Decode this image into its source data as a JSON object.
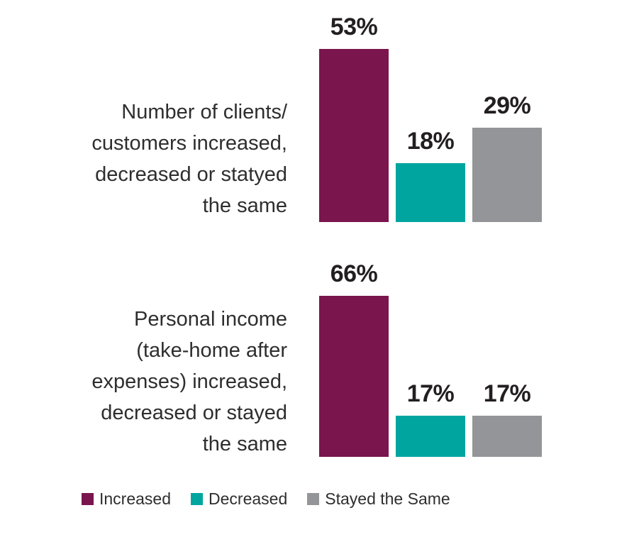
{
  "chart_data": {
    "type": "bar",
    "orientation": "vertical",
    "unit": "%",
    "categories": [
      "Increased",
      "Decreased",
      "Stayed the Same"
    ],
    "colors": [
      "#7A154D",
      "#00A5A0",
      "#949598"
    ],
    "grid": false,
    "ylim": [
      0,
      100
    ],
    "groups": [
      {
        "label_lines": [
          "Number of clients/",
          "customers increased,",
          "decreased or statyed",
          "the same"
        ],
        "values": [
          53,
          18,
          29
        ],
        "value_labels": [
          "53%",
          "18%",
          "29%"
        ]
      },
      {
        "label_lines": [
          "Personal income",
          "(take-home after",
          "expenses) increased,",
          "decreased or stayed",
          "the same"
        ],
        "values": [
          66,
          17,
          17
        ],
        "value_labels": [
          "66%",
          "17%",
          "17%"
        ]
      }
    ],
    "legend": {
      "position": "bottom",
      "items": [
        {
          "label": "Increased",
          "color": "#7A154D"
        },
        {
          "label": "Decreased",
          "color": "#00A5A0"
        },
        {
          "label": "Stayed the Same",
          "color": "#949598"
        }
      ]
    },
    "value_label_color": "#231f20",
    "text_color": "#2e2e2e"
  }
}
